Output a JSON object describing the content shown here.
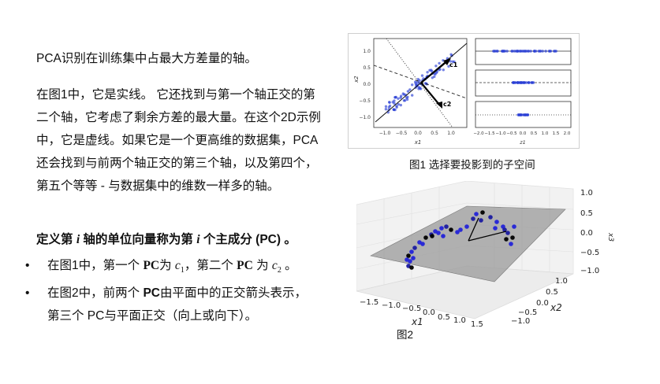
{
  "intro": "PCA识别在训练集中占最大方差量的轴。",
  "paragraph": "在图1中，它是实线。 它还找到与第一个轴正交的第二个轴，它考虑了剩余方差的最大量。在这个2D示例中，它是虚线。如果它是一个更高维的数据集，PCA还会找到与前两个轴正交的第三个轴，以及第四个，第五个等等 - 与数据集中的维数一样多的轴。",
  "definition": {
    "before": "定义第 ",
    "i1": "i",
    "middle": " 轴的单位向量称为第 ",
    "i2": "i",
    "after": " 个主成分 (PC) 。"
  },
  "bullet1": {
    "a": "在图1中，第一个 ",
    "pc1": "PC",
    "b": "为 ",
    "c1": "c",
    "c1sub": "1",
    "c": "，第二个 ",
    "pc2": "PC",
    "d": " 为 ",
    "c2": "c",
    "c2sub": "2",
    "e": " 。"
  },
  "bullet2": {
    "a": "在图2中，前两个 ",
    "pc": "PC",
    "b": "由平面中的正交箭头表示，第三个 PC与平面正交（向上或向下）。"
  },
  "bullet_marker": "•",
  "figure1": {
    "caption": "图1 选择要投影到的子空间",
    "left_y_ticks": [
      "1.0",
      "0.5",
      "0.0",
      "−0.5",
      "−1.0"
    ],
    "left_x_ticks": [
      "−1.0",
      "−0.5",
      "0.0",
      "0.5",
      "1.0"
    ],
    "right_x_ticks": [
      "−2.0",
      "−1.5",
      "−1.0",
      "−0.5",
      "0.0",
      "0.5",
      "1.0",
      "1.5",
      "2.0"
    ],
    "ylabel": "x2",
    "xlabel": "x1",
    "right_xlabel": "z1",
    "c1_label": "c1",
    "c2_label": "c2",
    "point_color": "#2a3fd6"
  },
  "figure2": {
    "caption": "图2",
    "z_ticks": [
      "1.0",
      "0.5",
      "0.0",
      "−0.5",
      "−1.0"
    ],
    "x_ticks": [
      "−1.5",
      "−1.0",
      "−0.5",
      "0.0",
      "0.5",
      "1.0",
      "1.5"
    ],
    "y_ticks": [
      "1.0",
      "0.5",
      "0.0",
      "−0.5",
      "−1.0"
    ],
    "xlabel": "x1",
    "ylabel": "x2",
    "zlabel": "x3"
  }
}
